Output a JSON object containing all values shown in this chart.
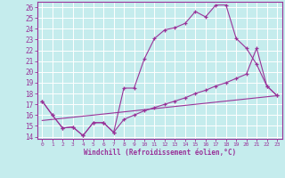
{
  "xlabel": "Windchill (Refroidissement éolien,°C)",
  "bg_color": "#c5eced",
  "grid_color": "#ffffff",
  "line_color": "#993399",
  "xlim": [
    -0.5,
    23.5
  ],
  "ylim": [
    13.8,
    26.5
  ],
  "xticks": [
    0,
    1,
    2,
    3,
    4,
    5,
    6,
    7,
    8,
    9,
    10,
    11,
    12,
    13,
    14,
    15,
    16,
    17,
    18,
    19,
    20,
    21,
    22,
    23
  ],
  "yticks": [
    14,
    15,
    16,
    17,
    18,
    19,
    20,
    21,
    22,
    23,
    24,
    25,
    26
  ],
  "curve1_x": [
    0,
    1,
    2,
    3,
    4,
    5,
    6,
    7,
    8,
    9,
    10,
    11,
    12,
    13,
    14,
    15,
    16,
    17,
    18,
    19,
    20,
    21,
    22,
    23
  ],
  "curve1_y": [
    17.3,
    16.0,
    14.8,
    14.9,
    14.1,
    15.3,
    15.3,
    14.4,
    18.5,
    18.5,
    21.2,
    23.1,
    23.9,
    24.1,
    24.5,
    25.6,
    25.1,
    26.2,
    26.2,
    23.1,
    22.2,
    20.7,
    18.7,
    17.8
  ],
  "curve2_x": [
    0,
    1,
    2,
    3,
    4,
    5,
    6,
    7,
    8,
    9,
    10,
    11,
    12,
    13,
    14,
    15,
    16,
    17,
    18,
    19,
    20,
    21,
    22,
    23
  ],
  "curve2_y": [
    17.3,
    16.0,
    14.8,
    14.9,
    14.1,
    15.3,
    15.3,
    14.4,
    15.6,
    16.0,
    16.4,
    16.7,
    17.0,
    17.3,
    17.6,
    18.0,
    18.3,
    18.7,
    19.0,
    19.4,
    19.8,
    22.2,
    18.7,
    17.8
  ],
  "curve3_x": [
    0,
    23
  ],
  "curve3_y": [
    15.5,
    17.8
  ]
}
